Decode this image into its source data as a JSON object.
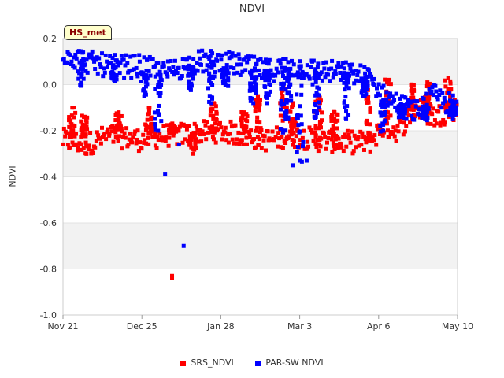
{
  "site_label": "HS_met",
  "chart_data": {
    "type": "scatter",
    "title": "NDVI",
    "xlabel": "",
    "ylabel": "NDVI",
    "ylim": [
      -1.0,
      0.2
    ],
    "yticks": [
      0.2,
      0.0,
      -0.2,
      -0.4,
      -0.6,
      -0.8,
      -1.0
    ],
    "ytick_labels": [
      "0.2",
      "0.0",
      "-0.2",
      "-0.4",
      "-0.6",
      "-0.8",
      "-1.0"
    ],
    "xlim_days": [
      0,
      170
    ],
    "xticks_days": [
      0,
      34,
      68,
      102,
      136,
      170
    ],
    "xtick_labels": [
      "Nov 21",
      "Dec 25",
      "Jan 28",
      "Mar 3",
      "Apr 6",
      "May 10"
    ],
    "grid": true,
    "legend_position": "bottom",
    "series": [
      {
        "name": "SRS_NDVI",
        "color": "#ff0000",
        "profile": [
          [
            0,
            -0.24
          ],
          [
            10,
            -0.26
          ],
          [
            20,
            -0.22
          ],
          [
            34,
            -0.24
          ],
          [
            44,
            -0.22
          ],
          [
            58,
            -0.21
          ],
          [
            68,
            -0.2
          ],
          [
            78,
            -0.22
          ],
          [
            88,
            -0.24
          ],
          [
            98,
            -0.22
          ],
          [
            110,
            -0.24
          ],
          [
            122,
            -0.25
          ],
          [
            132,
            -0.25
          ],
          [
            138,
            -0.18
          ],
          [
            144,
            -0.2
          ],
          [
            152,
            -0.1
          ],
          [
            160,
            -0.14
          ],
          [
            170,
            -0.1
          ]
        ],
        "spikes": [
          [
            4,
            -0.1
          ],
          [
            9,
            -0.14
          ],
          [
            24,
            -0.12
          ],
          [
            37,
            -0.1
          ],
          [
            47,
            -0.18
          ],
          [
            56,
            -0.3
          ],
          [
            65,
            -0.08
          ],
          [
            78,
            -0.12
          ],
          [
            84,
            -0.05
          ],
          [
            95,
            -0.01
          ],
          [
            99,
            -0.08
          ],
          [
            110,
            -0.05
          ],
          [
            117,
            -0.12
          ],
          [
            131,
            0.0
          ],
          [
            140,
            0.02
          ],
          [
            150,
            0.0
          ],
          [
            157,
            0.01
          ],
          [
            166,
            0.03
          ]
        ],
        "outliers": [
          [
            47,
            -0.83
          ],
          [
            47,
            -0.84
          ]
        ]
      },
      {
        "name": "PAR-SW NDVI",
        "color": "#0000ff",
        "profile": [
          [
            0,
            0.14
          ],
          [
            10,
            0.1
          ],
          [
            20,
            0.08
          ],
          [
            34,
            0.08
          ],
          [
            44,
            0.05
          ],
          [
            58,
            0.1
          ],
          [
            68,
            0.1
          ],
          [
            78,
            0.08
          ],
          [
            88,
            0.06
          ],
          [
            98,
            0.08
          ],
          [
            110,
            0.06
          ],
          [
            122,
            0.05
          ],
          [
            132,
            0.03
          ],
          [
            138,
            -0.05
          ],
          [
            144,
            -0.08
          ],
          [
            152,
            -0.12
          ],
          [
            160,
            -0.05
          ],
          [
            170,
            -0.1
          ]
        ],
        "spikes": [
          [
            8,
            0.0
          ],
          [
            22,
            0.02
          ],
          [
            35,
            -0.05
          ],
          [
            41,
            -0.2
          ],
          [
            55,
            -0.02
          ],
          [
            64,
            -0.08
          ],
          [
            70,
            0.0
          ],
          [
            82,
            -0.08
          ],
          [
            88,
            -0.08
          ],
          [
            95,
            -0.2
          ],
          [
            97,
            -0.15
          ],
          [
            102,
            -0.33
          ],
          [
            109,
            -0.14
          ],
          [
            122,
            -0.15
          ],
          [
            130,
            -0.05
          ],
          [
            138,
            -0.2
          ],
          [
            146,
            -0.14
          ],
          [
            156,
            -0.15
          ],
          [
            168,
            -0.15
          ]
        ],
        "outliers": [
          [
            52,
            -0.7
          ],
          [
            44,
            -0.39
          ],
          [
            50,
            -0.26
          ],
          [
            99,
            -0.35
          ],
          [
            105,
            -0.33
          ]
        ]
      }
    ]
  }
}
